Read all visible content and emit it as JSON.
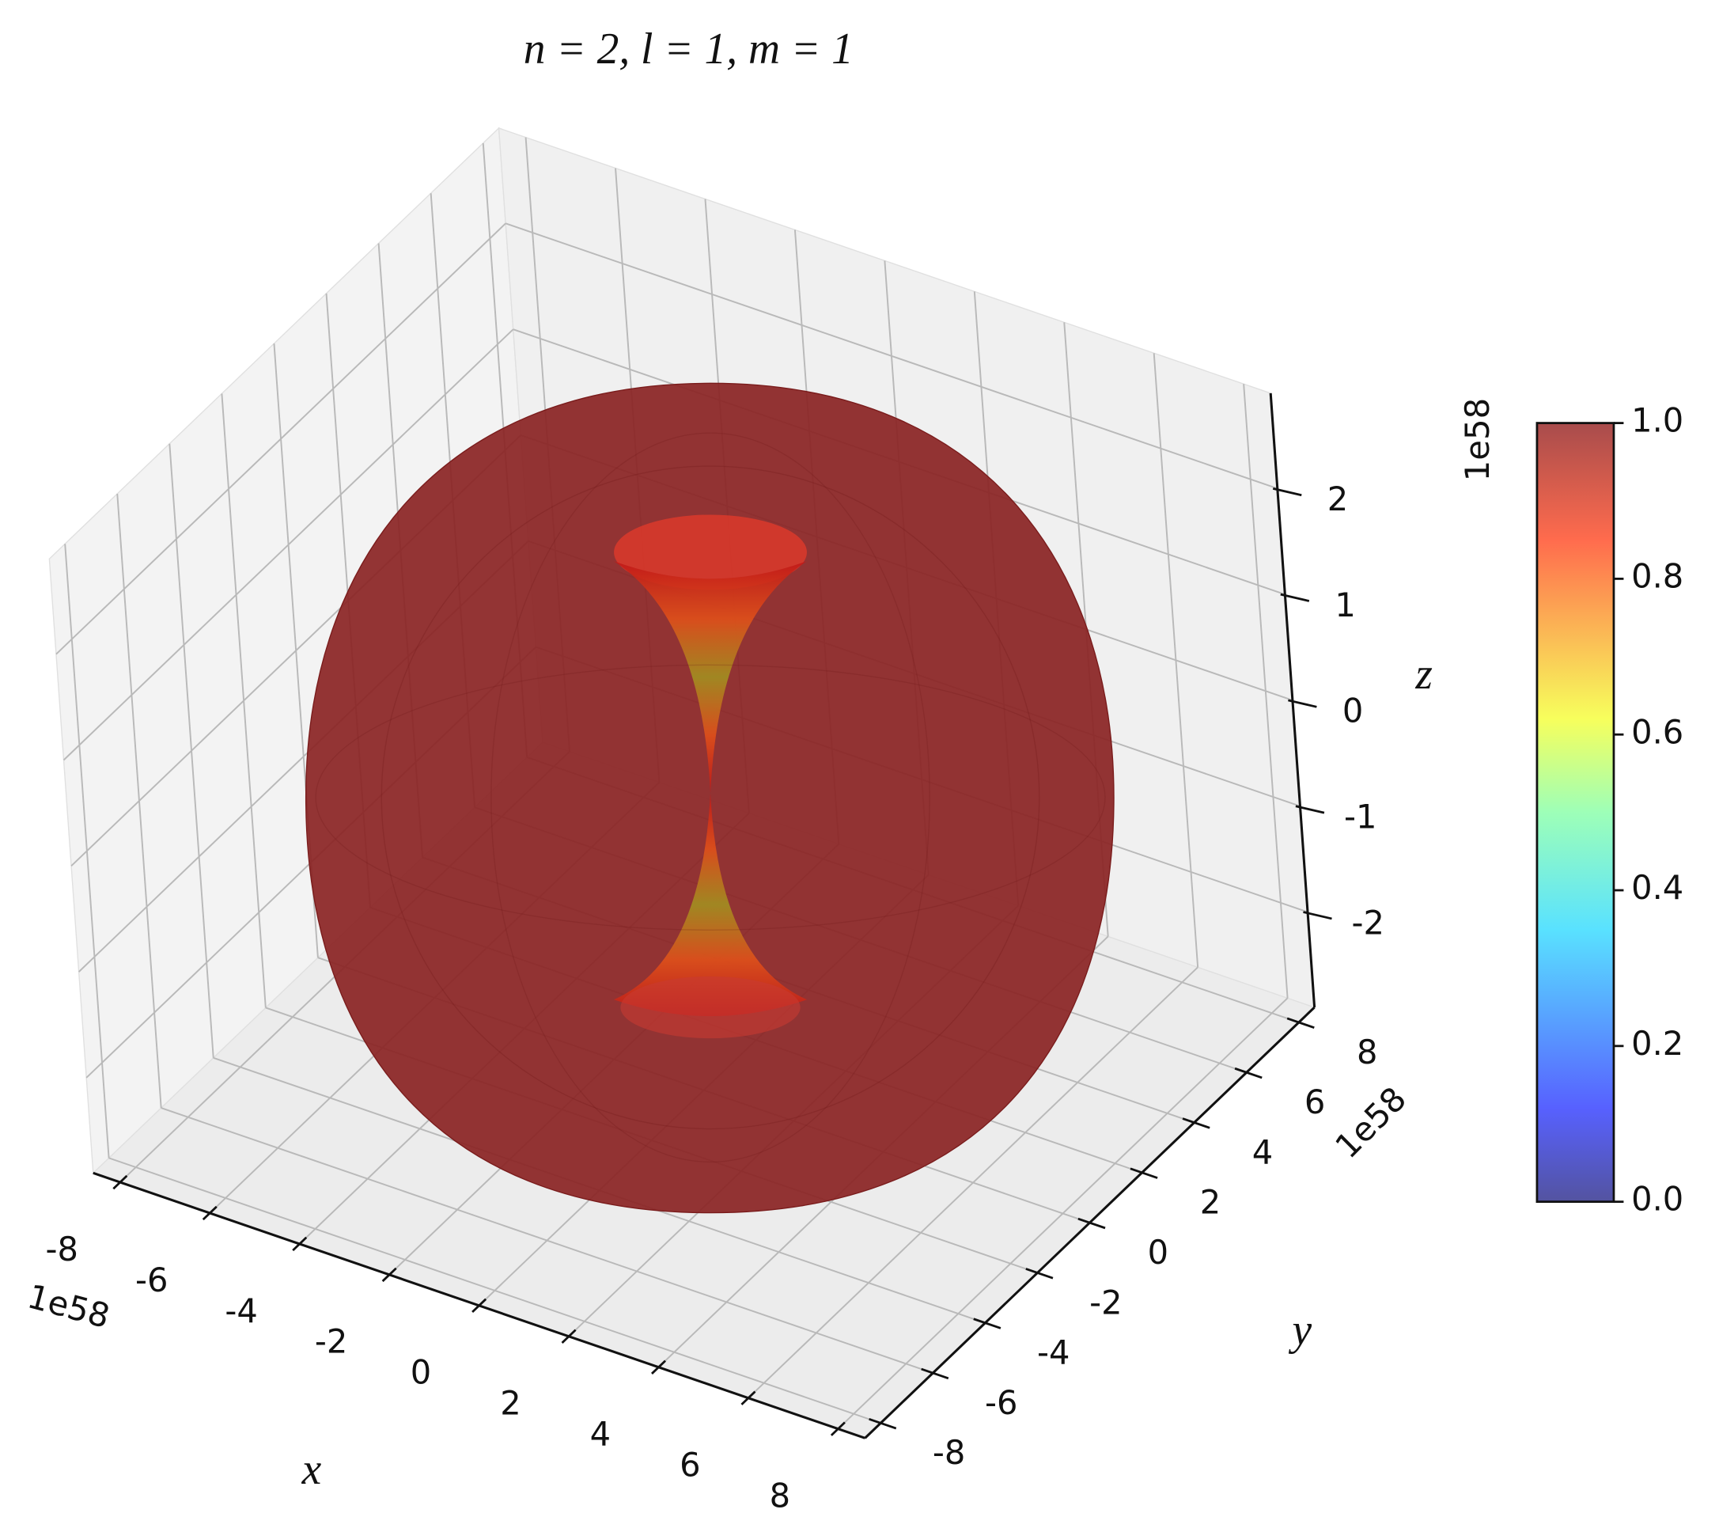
{
  "chart_data": {
    "type": "surface3d",
    "title": "n = 2, l = 1, m = 1",
    "xlabel": "x",
    "ylabel": "y",
    "zlabel": "z",
    "xlim": [
      -8.6,
      8.6
    ],
    "ylim": [
      -8.6,
      8.6
    ],
    "zlim": [
      -2.9,
      2.9
    ],
    "xticks": [
      -8,
      -6,
      -4,
      -2,
      0,
      2,
      4,
      6,
      8
    ],
    "yticks": [
      -8,
      -6,
      -4,
      -2,
      0,
      2,
      4,
      6,
      8
    ],
    "zticks": [
      -2,
      -1,
      0,
      1,
      2
    ],
    "x_offset": "1e58",
    "y_offset": "1e58",
    "z_offset": "1e58",
    "grid": true,
    "surface_color": "#8b2525",
    "colorbar": {
      "colormap": "jet",
      "lim": [
        0,
        1
      ],
      "ticks": [
        {
          "value": 0,
          "label": "0.0"
        },
        {
          "value": 0.2,
          "label": "0.2"
        },
        {
          "value": 0.4,
          "label": "0.4"
        },
        {
          "value": 0.6,
          "label": "0.6"
        },
        {
          "value": 0.8,
          "label": "0.8"
        },
        {
          "value": 1,
          "label": "1.0"
        }
      ]
    }
  }
}
